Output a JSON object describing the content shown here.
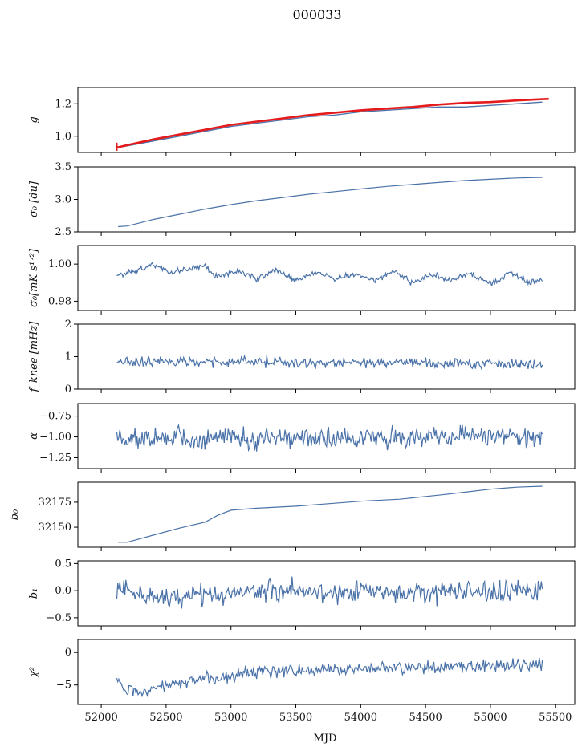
{
  "figure_title": "000033",
  "colors": {
    "series": "#4a72a8",
    "fit": "#e41a1c",
    "frame": "#000000"
  },
  "x_axis": {
    "label": "MJD",
    "range": [
      51820,
      55650
    ],
    "ticks": [
      52000,
      52500,
      53000,
      53500,
      54000,
      54500,
      55000,
      55500
    ],
    "tick_labels": [
      "52000",
      "52500",
      "53000",
      "53500",
      "54000",
      "54500",
      "55000",
      "55500"
    ]
  },
  "chart_data": [
    {
      "type": "line",
      "ylabel": "g",
      "ylim": [
        0.9,
        1.3
      ],
      "yticks": [
        1.0,
        1.2
      ],
      "ytick_labels": [
        "1.0",
        "1.2"
      ],
      "series": [
        {
          "role": "data",
          "x": [
            52120,
            52200,
            52400,
            52600,
            52800,
            53000,
            53200,
            53400,
            53600,
            53800,
            54000,
            54200,
            54400,
            54600,
            54800,
            55000,
            55200,
            55400
          ],
          "values": [
            0.93,
            0.94,
            0.97,
            1.0,
            1.03,
            1.06,
            1.08,
            1.1,
            1.12,
            1.13,
            1.15,
            1.16,
            1.17,
            1.18,
            1.18,
            1.19,
            1.2,
            1.21
          ]
        },
        {
          "role": "fit",
          "x": [
            52120,
            52200,
            52400,
            52600,
            52800,
            53000,
            53200,
            53400,
            53600,
            53800,
            54000,
            54200,
            54400,
            54600,
            54800,
            55000,
            55200,
            55450
          ],
          "values": [
            0.93,
            0.945,
            0.98,
            1.01,
            1.04,
            1.07,
            1.09,
            1.11,
            1.13,
            1.145,
            1.16,
            1.17,
            1.18,
            1.195,
            1.205,
            1.21,
            1.22,
            1.23
          ]
        }
      ],
      "errorbar": {
        "x": 52120,
        "ymin": 0.91,
        "ymax": 0.96
      }
    },
    {
      "type": "line",
      "ylabel": "σ₀ [du]",
      "ylim": [
        2.5,
        3.5
      ],
      "yticks": [
        2.5,
        3.0,
        3.5
      ],
      "ytick_labels": [
        "2.5",
        "3.0",
        "3.5"
      ],
      "x": [
        52130,
        52200,
        52300,
        52400,
        52600,
        52800,
        53000,
        53200,
        53400,
        53600,
        53800,
        54000,
        54200,
        54400,
        54600,
        54800,
        55000,
        55200,
        55400
      ],
      "values": [
        2.58,
        2.59,
        2.64,
        2.69,
        2.77,
        2.85,
        2.92,
        2.98,
        3.03,
        3.08,
        3.12,
        3.16,
        3.2,
        3.23,
        3.26,
        3.29,
        3.31,
        3.33,
        3.34
      ]
    },
    {
      "type": "line",
      "ylabel": "σ₀[mK s¹ᐟ²]",
      "ylim": [
        0.975,
        1.01
      ],
      "yticks": [
        0.98,
        1.0
      ],
      "ytick_labels": [
        "0.98",
        "1.00"
      ],
      "x": [
        52120,
        52250,
        52400,
        52550,
        52700,
        52800,
        52900,
        53050,
        53200,
        53350,
        53500,
        53650,
        53800,
        53950,
        54100,
        54250,
        54400,
        54550,
        54700,
        54850,
        55000,
        55150,
        55300,
        55400
      ],
      "values": [
        0.994,
        0.996,
        1.0,
        0.995,
        0.998,
        0.999,
        0.993,
        0.996,
        0.992,
        0.997,
        0.991,
        0.996,
        0.992,
        0.995,
        0.991,
        0.996,
        0.99,
        0.994,
        0.991,
        0.995,
        0.989,
        0.995,
        0.99,
        0.992
      ],
      "noise": 0.0012
    },
    {
      "type": "line",
      "ylabel": "f_knee [mHz]",
      "ylim": [
        0,
        2
      ],
      "yticks": [
        0,
        1,
        2
      ],
      "ytick_labels": [
        "0",
        "1",
        "2"
      ],
      "x": [
        52120,
        55400
      ],
      "values": [
        0.85,
        0.78
      ],
      "noise": 0.11
    },
    {
      "type": "line",
      "ylabel": "α",
      "ylim": [
        -1.38,
        -0.6
      ],
      "yticks": [
        -0.75,
        -1.0,
        -1.25
      ],
      "ytick_labels": [
        "−0.75",
        "−1.00",
        "−1.25"
      ],
      "x": [
        52120,
        55400
      ],
      "values": [
        -1.02,
        -1.0
      ],
      "noise": 0.09
    },
    {
      "type": "line",
      "ylabel": "b₀",
      "ylim": [
        32130,
        32195
      ],
      "yticks": [
        32150,
        32175
      ],
      "ytick_labels": [
        "32150",
        "32175"
      ],
      "x": [
        52130,
        52200,
        52400,
        52600,
        52800,
        52900,
        53000,
        53200,
        53500,
        53800,
        54000,
        54300,
        54600,
        54800,
        55000,
        55200,
        55400
      ],
      "values": [
        32135,
        32135,
        32142,
        32149,
        32155,
        32162,
        32167,
        32169,
        32171,
        32174,
        32176,
        32178,
        32182,
        32185,
        32188,
        32190,
        32191
      ]
    },
    {
      "type": "line",
      "ylabel": "b₁",
      "ylim": [
        -0.65,
        0.55
      ],
      "yticks": [
        0.5,
        0.0,
        -0.5
      ],
      "ytick_labels": [
        "0.5",
        "0.0",
        "−0.5"
      ],
      "x": [
        52120,
        52400,
        52800,
        53200,
        54000,
        55400
      ],
      "values": [
        0.0,
        -0.12,
        -0.08,
        0.0,
        -0.02,
        -0.02
      ],
      "noise": 0.14
    },
    {
      "type": "line",
      "ylabel": "χ²",
      "ylim": [
        -8,
        2
      ],
      "yticks": [
        0,
        -5
      ],
      "ytick_labels": [
        "0",
        "−5"
      ],
      "x": [
        52120,
        52200,
        52300,
        52500,
        52800,
        53200,
        53700,
        54200,
        54800,
        55400
      ],
      "values": [
        -4.0,
        -5.5,
        -6.0,
        -5.0,
        -4.0,
        -3.2,
        -2.6,
        -2.3,
        -2.1,
        -2.0
      ],
      "noise": 0.75
    }
  ]
}
